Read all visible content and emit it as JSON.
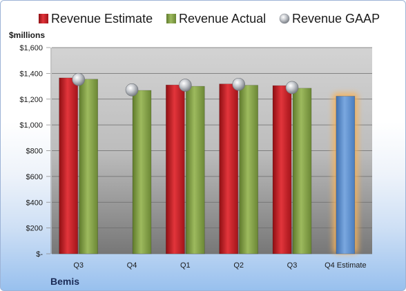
{
  "chart_data": {
    "type": "bar",
    "unit_label": "$millions",
    "company": "Bemis",
    "categories": [
      "Q3",
      "Q4",
      "Q1",
      "Q2",
      "Q3",
      "Q4 Estimate"
    ],
    "series": [
      {
        "name": "Revenue Estimate",
        "color": "#d11f26",
        "values": [
          1365,
          null,
          1310,
          1318,
          1305,
          null
        ]
      },
      {
        "name": "Revenue Actual",
        "color": "#86a44a",
        "values": [
          1355,
          1268,
          1300,
          1308,
          1285,
          null
        ]
      },
      {
        "name": "Revenue GAAP",
        "color": "#b8bcc2",
        "values": [
          1353,
          1272,
          1308,
          1315,
          1290,
          null
        ]
      }
    ],
    "projection": {
      "name": "Q4 Estimate",
      "color": "#5b8fd0",
      "glow": "#f5b25c",
      "value": 1223
    },
    "ylim": [
      0,
      1600
    ],
    "yticks": [
      {
        "value": 0,
        "label": "$-"
      },
      {
        "value": 200,
        "label": "$200"
      },
      {
        "value": 400,
        "label": "$400"
      },
      {
        "value": 600,
        "label": "$600"
      },
      {
        "value": 800,
        "label": "$800"
      },
      {
        "value": 1000,
        "label": "$1,000"
      },
      {
        "value": 1200,
        "label": "$1,200"
      },
      {
        "value": 1400,
        "label": "$1,400"
      },
      {
        "value": 1600,
        "label": "$1,600"
      }
    ],
    "grid": true,
    "legend_position": "top"
  }
}
